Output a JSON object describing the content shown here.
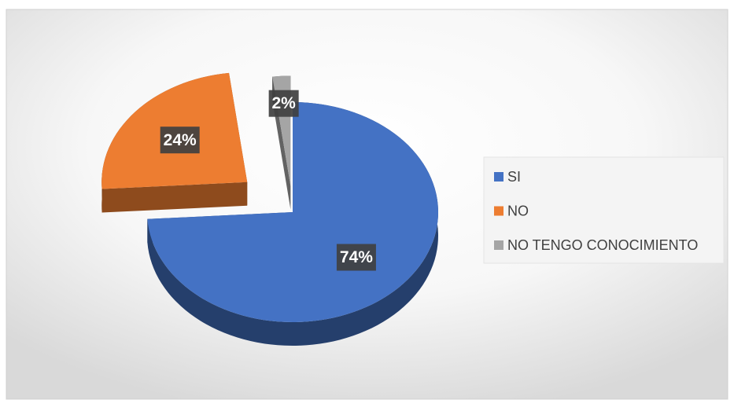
{
  "chart_data": {
    "type": "pie",
    "categories": [
      "SI",
      "NO",
      "NO TENGO CONOCIMIENTO"
    ],
    "values": [
      74,
      24,
      2
    ],
    "value_labels": [
      "74%",
      "24%",
      "2%"
    ],
    "colors": [
      "#4472c4",
      "#ed7d31",
      "#a5a5a5"
    ],
    "legend": "right"
  }
}
